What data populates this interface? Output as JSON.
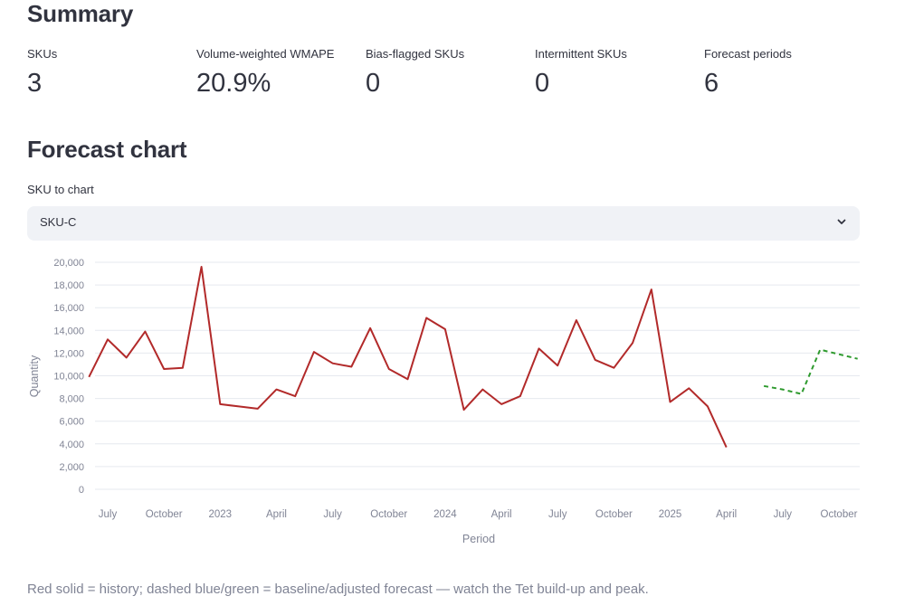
{
  "summary": {
    "heading": "Summary",
    "metrics": [
      {
        "label": "SKUs",
        "value": "3"
      },
      {
        "label": "Volume-weighted WMAPE",
        "value": "20.9%"
      },
      {
        "label": "Bias-flagged SKUs",
        "value": "0"
      },
      {
        "label": "Intermittent SKUs",
        "value": "0"
      },
      {
        "label": "Forecast periods",
        "value": "6"
      }
    ]
  },
  "chart_section": {
    "heading": "Forecast chart",
    "select_label": "SKU to chart",
    "selected_sku": "SKU-C",
    "caption": "Red solid = history; dashed blue/green = baseline/adjusted forecast — watch the Tet build-up and peak."
  },
  "colors": {
    "history": "#b22a2a",
    "adjusted_forecast": "#2e9a2e",
    "grid": "#e6e9ef",
    "axis_text": "#808495"
  },
  "chart_data": {
    "type": "line",
    "xlabel": "Period",
    "ylabel": "Quantity",
    "ylim": [
      0,
      20000
    ],
    "y_ticks": [
      "0",
      "2,000",
      "4,000",
      "6,000",
      "8,000",
      "10,000",
      "12,000",
      "14,000",
      "16,000",
      "18,000",
      "20,000"
    ],
    "x_ticks": [
      {
        "label": "July",
        "x": "2022-07"
      },
      {
        "label": "October",
        "x": "2022-10"
      },
      {
        "label": "2023",
        "x": "2023-01"
      },
      {
        "label": "April",
        "x": "2023-04"
      },
      {
        "label": "July",
        "x": "2023-07"
      },
      {
        "label": "October",
        "x": "2023-10"
      },
      {
        "label": "2024",
        "x": "2024-01"
      },
      {
        "label": "April",
        "x": "2024-04"
      },
      {
        "label": "July",
        "x": "2024-07"
      },
      {
        "label": "October",
        "x": "2024-10"
      },
      {
        "label": "2025",
        "x": "2025-01"
      },
      {
        "label": "April",
        "x": "2025-04"
      },
      {
        "label": "July",
        "x": "2025-07"
      },
      {
        "label": "October",
        "x": "2025-10"
      }
    ],
    "series": [
      {
        "style": "solid",
        "x": [
          "2022-06",
          "2022-07",
          "2022-08",
          "2022-09",
          "2022-10",
          "2022-11",
          "2022-12",
          "2023-01",
          "2023-02",
          "2023-03",
          "2023-04",
          "2023-05",
          "2023-06",
          "2023-07",
          "2023-08",
          "2023-09",
          "2023-10",
          "2023-11",
          "2023-12",
          "2024-01",
          "2024-02",
          "2024-03",
          "2024-04",
          "2024-05",
          "2024-06",
          "2024-07",
          "2024-08",
          "2024-09",
          "2024-10",
          "2024-11",
          "2024-12",
          "2025-01",
          "2025-02",
          "2025-03",
          "2025-04",
          "2025-05"
        ],
        "values": [
          9900,
          13200,
          11600,
          13900,
          10600,
          10700,
          19600,
          7500,
          7300,
          7100,
          8800,
          8200,
          12100,
          11100,
          10800,
          14200,
          10600,
          9700,
          15100,
          14100,
          7000,
          8800,
          7500,
          8200,
          12400,
          10900,
          14900,
          11400,
          10700,
          12900,
          17600,
          7700,
          8900,
          7300,
          3700,
          null
        ]
      },
      {
        "style": "dashed",
        "x": [
          "2025-06",
          "2025-07",
          "2025-08",
          "2025-09",
          "2025-10",
          "2025-11"
        ],
        "values": [
          9100,
          8800,
          8400,
          12300,
          11900,
          11500
        ]
      }
    ]
  }
}
